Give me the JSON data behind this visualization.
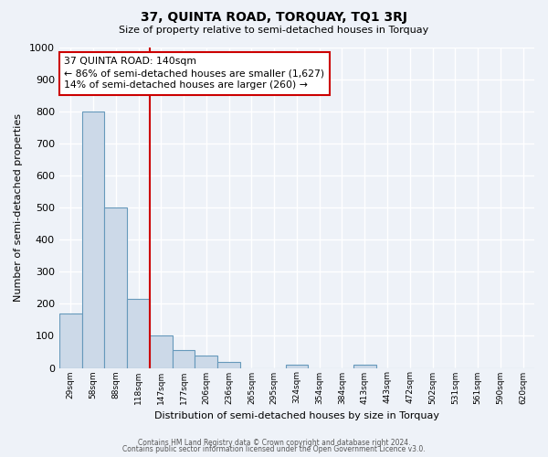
{
  "title": "37, QUINTA ROAD, TORQUAY, TQ1 3RJ",
  "subtitle": "Size of property relative to semi-detached houses in Torquay",
  "xlabel": "Distribution of semi-detached houses by size in Torquay",
  "ylabel": "Number of semi-detached properties",
  "bin_labels": [
    "29sqm",
    "58sqm",
    "88sqm",
    "118sqm",
    "147sqm",
    "177sqm",
    "206sqm",
    "236sqm",
    "265sqm",
    "295sqm",
    "324sqm",
    "354sqm",
    "384sqm",
    "413sqm",
    "443sqm",
    "472sqm",
    "502sqm",
    "531sqm",
    "561sqm",
    "590sqm",
    "620sqm"
  ],
  "bar_heights": [
    170,
    800,
    500,
    215,
    100,
    55,
    38,
    18,
    0,
    0,
    10,
    0,
    0,
    10,
    0,
    0,
    0,
    0,
    0,
    0,
    0
  ],
  "bar_color": "#ccd9e8",
  "bar_edge_color": "#6699bb",
  "vline_x_index": 4,
  "vline_color": "#cc0000",
  "annotation_title": "37 QUINTA ROAD: 140sqm",
  "annotation_line1": "← 86% of semi-detached houses are smaller (1,627)",
  "annotation_line2": "14% of semi-detached houses are larger (260) →",
  "annotation_box_color": "white",
  "annotation_box_edge": "#cc0000",
  "ylim": [
    0,
    1000
  ],
  "yticks": [
    0,
    100,
    200,
    300,
    400,
    500,
    600,
    700,
    800,
    900,
    1000
  ],
  "footer1": "Contains HM Land Registry data © Crown copyright and database right 2024.",
  "footer2": "Contains public sector information licensed under the Open Government Licence v3.0.",
  "background_color": "#eef2f8",
  "grid_color": "#ffffff"
}
